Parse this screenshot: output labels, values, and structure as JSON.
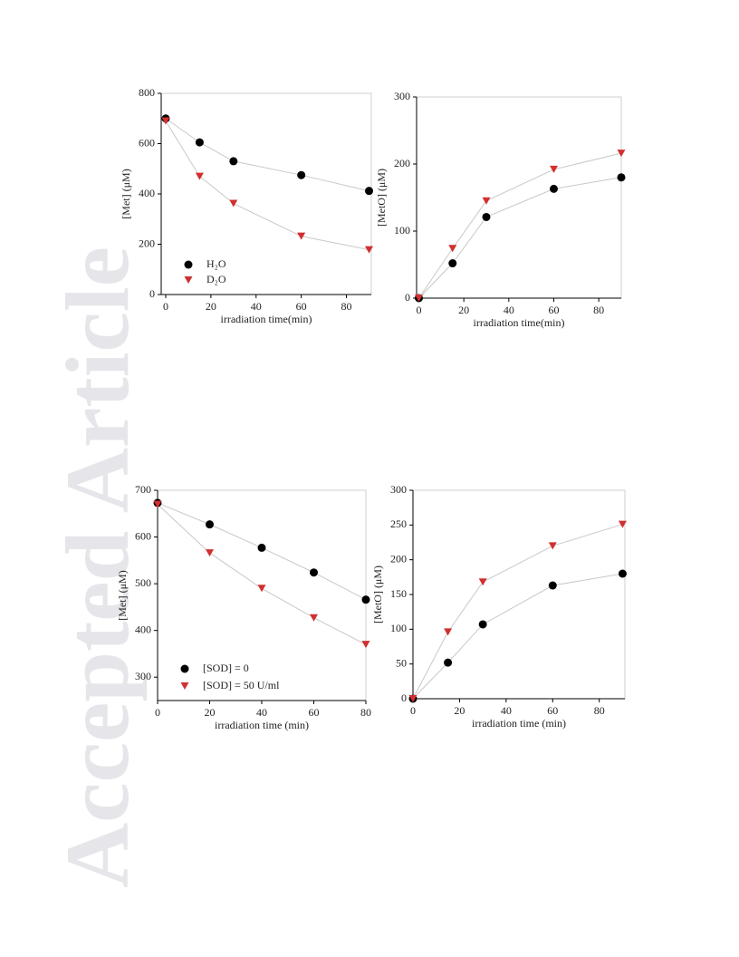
{
  "watermark": "Accepted Article",
  "chart_data": [
    {
      "type": "line",
      "xlabel": "irradiation time(min)",
      "ylabel": "[Met] (μM)",
      "xlim": [
        -2,
        91
      ],
      "xticks": [
        0,
        20,
        40,
        60,
        80
      ],
      "ylim": [
        0,
        800
      ],
      "yticks": [
        0,
        200,
        400,
        600,
        800
      ],
      "legend": "lower left",
      "x": [
        0,
        15,
        30,
        60,
        90
      ],
      "series": [
        {
          "name": "H₂O",
          "color": "#000000",
          "marker": "circle",
          "values": [
            700,
            605,
            530,
            475,
            412
          ]
        },
        {
          "name": "D₂O",
          "color": "#d03030",
          "marker": "triangle-down",
          "values": [
            690,
            470,
            362,
            232,
            178
          ]
        }
      ]
    },
    {
      "type": "line",
      "xlabel": "irradiation time(min)",
      "ylabel": "[MetO] (μM)",
      "xlim": [
        -1,
        90
      ],
      "xticks": [
        0,
        20,
        40,
        60,
        80
      ],
      "ylim": [
        0,
        300
      ],
      "yticks": [
        0,
        100,
        200,
        300
      ],
      "x": [
        0,
        15,
        30,
        60,
        90
      ],
      "series": [
        {
          "color": "#000000",
          "marker": "circle",
          "values": [
            0,
            52,
            121,
            163,
            180
          ]
        },
        {
          "color": "#d03030",
          "marker": "triangle-down",
          "values": [
            0,
            74,
            145,
            192,
            216
          ]
        }
      ]
    },
    {
      "type": "line",
      "xlabel": "irradiation time (min)",
      "ylabel": "[Met] (μM)",
      "xlim": [
        0,
        80
      ],
      "xticks": [
        0,
        20,
        40,
        60,
        80
      ],
      "ylim": [
        250,
        700
      ],
      "yticks": [
        300,
        400,
        500,
        600,
        700
      ],
      "legend": "lower left",
      "x": [
        0,
        20,
        40,
        60,
        80
      ],
      "series": [
        {
          "name": "[SOD] = 0",
          "color": "#000000",
          "marker": "circle",
          "values": [
            673,
            627,
            577,
            524,
            466
          ]
        },
        {
          "name": "[SOD] = 50 U/ml",
          "color": "#d03030",
          "marker": "triangle-down",
          "values": [
            670,
            566,
            490,
            427,
            370
          ]
        }
      ]
    },
    {
      "type": "line",
      "xlabel": "irradiation time (min)",
      "ylabel": "[MetO] (μM)",
      "xlim": [
        0,
        91
      ],
      "xticks": [
        0,
        20,
        40,
        60,
        80
      ],
      "ylim": [
        0,
        300
      ],
      "yticks": [
        0,
        50,
        100,
        150,
        200,
        250,
        300
      ],
      "x": [
        0,
        15,
        30,
        60,
        90
      ],
      "series": [
        {
          "color": "#000000",
          "marker": "circle",
          "values": [
            0,
            52,
            107,
            163,
            180
          ]
        },
        {
          "color": "#d03030",
          "marker": "triangle-down",
          "values": [
            0,
            96,
            168,
            220,
            251
          ]
        }
      ]
    }
  ]
}
